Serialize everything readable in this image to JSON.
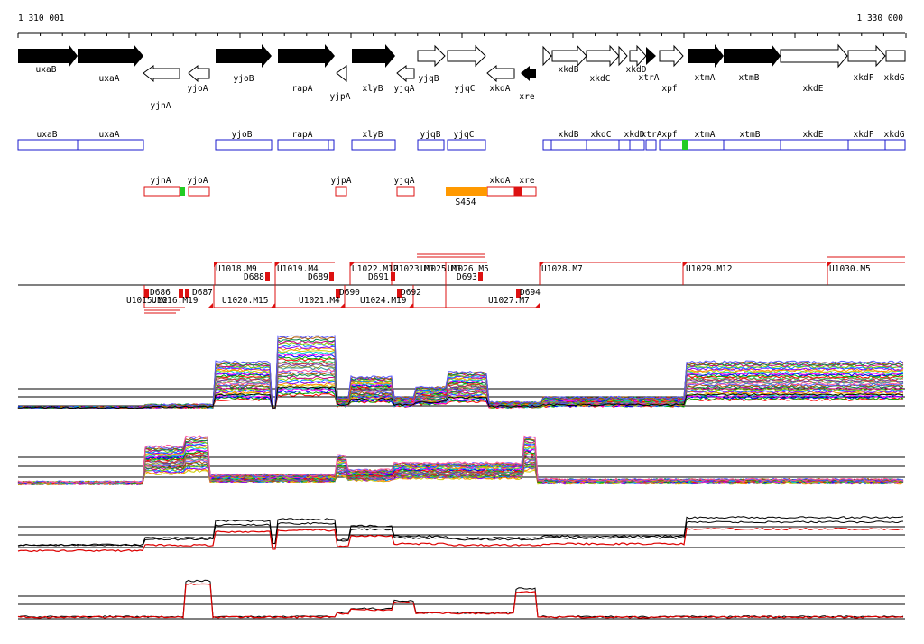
{
  "coordinates": {
    "start_label": "1 310 001",
    "end_label": "1 330 000"
  },
  "colors": {
    "gene_fill": "#000000",
    "transcript_blue": "#1a1acc",
    "transcript_red": "#dd1111",
    "green": "#22cc22",
    "orange": "#ff9900",
    "probe_line": "#000000",
    "probe_red": "#dd0000"
  },
  "genes": [
    {
      "name": "uxaB",
      "strand": "+",
      "filled": true
    },
    {
      "name": "uxaA",
      "strand": "+",
      "filled": true
    },
    {
      "name": "yjnA",
      "strand": "-",
      "filled": false
    },
    {
      "name": "yjoA",
      "strand": "-",
      "filled": false
    },
    {
      "name": "yjoB",
      "strand": "+",
      "filled": true
    },
    {
      "name": "rapA",
      "strand": "+",
      "filled": true
    },
    {
      "name": "yjpA",
      "strand": "-",
      "filled": false
    },
    {
      "name": "xlyB",
      "strand": "+",
      "filled": true
    },
    {
      "name": "yjqA",
      "strand": "-",
      "filled": false
    },
    {
      "name": "yjqB",
      "strand": "+",
      "filled": false
    },
    {
      "name": "yjqC",
      "strand": "+",
      "filled": false
    },
    {
      "name": "xkdA",
      "strand": "-",
      "filled": false
    },
    {
      "name": "xre",
      "strand": "-",
      "filled": true
    },
    {
      "name": "xkdB",
      "strand": "+",
      "filled": false
    },
    {
      "name": "xkdC",
      "strand": "+",
      "filled": false
    },
    {
      "name": "xkdD",
      "strand": "+",
      "filled": false
    },
    {
      "name": "xtrA",
      "strand": "+",
      "filled": true
    },
    {
      "name": "xpf",
      "strand": "+",
      "filled": false
    },
    {
      "name": "xtmA",
      "strand": "+",
      "filled": true
    },
    {
      "name": "xtmB",
      "strand": "+",
      "filled": true
    },
    {
      "name": "xkdE",
      "strand": "+",
      "filled": false
    },
    {
      "name": "xkdF",
      "strand": "+",
      "filled": false
    },
    {
      "name": "xkdG",
      "strand": "+",
      "filled": false
    }
  ],
  "transcripts_blue": [
    "uxaB",
    "uxaA",
    "yjoB",
    "rapA",
    "xlyB",
    "yjqB",
    "yjqC",
    "xkdB",
    "xkdC",
    "xkdD",
    "xtrA",
    "xpf",
    "xtmA",
    "xtmB",
    "xkdE",
    "xkdF",
    "xkdG"
  ],
  "transcripts_red": [
    "yjnA",
    "yjoA",
    "yjpA",
    "yjqA",
    "xkdA",
    "xre"
  ],
  "s_feature": "S454",
  "upper_segments": [
    "U1018.M9",
    "U1019.M4",
    "U1022.M12",
    "U1023.M1",
    "U1025.M1",
    "U1026.M5",
    "U1028.M7",
    "U1029.M12",
    "U1030.M5"
  ],
  "d_labels_upper": [
    "D688",
    "D689",
    "D691",
    "D693"
  ],
  "lower_segments": [
    "U1015.M2",
    "U1016.M19",
    "U1020.M15",
    "U1021.M4",
    "U1024.M19",
    "U1027.M7"
  ],
  "d_labels_lower": [
    "D686",
    "D687",
    "D690",
    "D692",
    "D694"
  ]
}
